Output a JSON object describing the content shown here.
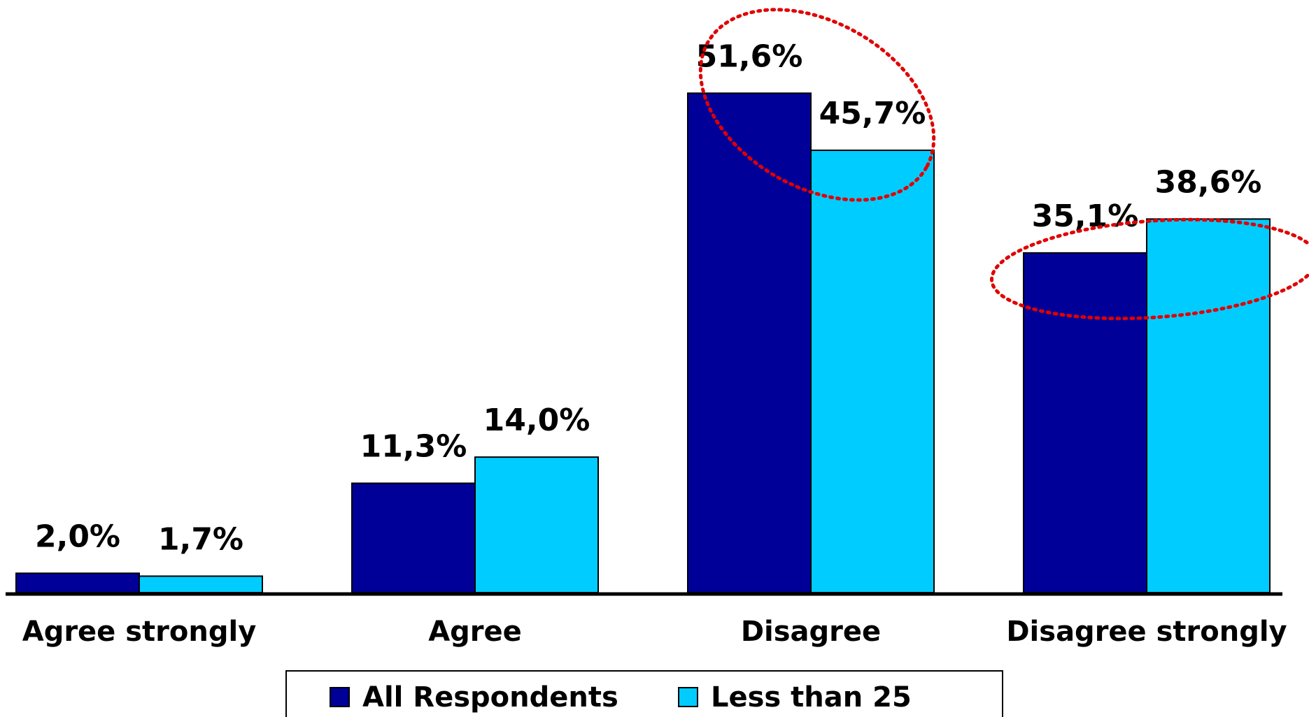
{
  "chart_data": {
    "type": "bar",
    "categories": [
      "Agree strongly",
      "Agree",
      "Disagree",
      "Disagree strongly"
    ],
    "series": [
      {
        "name": "All Respondents",
        "values": [
          2.0,
          11.3,
          51.6,
          35.1
        ],
        "labels": [
          "2,0%",
          "11,3%",
          "51,6%",
          "35,1%"
        ],
        "color": "#000099"
      },
      {
        "name": "Less than 25",
        "values": [
          1.7,
          14.0,
          45.7,
          38.6
        ],
        "labels": [
          "1,7%",
          "14,0%",
          "45,7%",
          "38,6%"
        ],
        "color": "#00CCFF"
      }
    ],
    "ylim": [
      0,
      60
    ],
    "grid": false,
    "legend_position": "bottom",
    "annotations": [
      {
        "type": "dotted-ellipse",
        "color": "#E00000",
        "around": "Disagree"
      },
      {
        "type": "dotted-ellipse",
        "color": "#E00000",
        "around": "Disagree strongly"
      }
    ]
  }
}
